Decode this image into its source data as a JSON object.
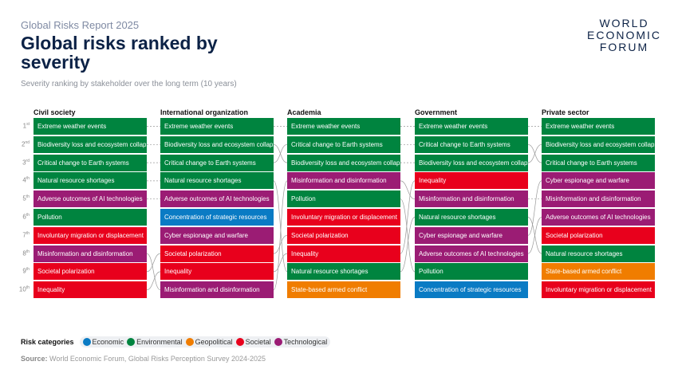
{
  "header": {
    "report": "Global Risks Report 2025",
    "title": "Global risks ranked by severity",
    "subtitle": "Severity ranking by stakeholder over the long term (10 years)",
    "logo": "WORLD ECONOMIC FORUM"
  },
  "categories": {
    "Economic": "#0a7bc4",
    "Environmental": "#00843f",
    "Geopolitical": "#f07d00",
    "Societal": "#e8001c",
    "Technological": "#9b1c74"
  },
  "ranks": [
    [
      "1",
      "st"
    ],
    [
      "2",
      "nd"
    ],
    [
      "3",
      "rd"
    ],
    [
      "4",
      "th"
    ],
    [
      "5",
      "th"
    ],
    [
      "6",
      "th"
    ],
    [
      "7",
      "th"
    ],
    [
      "8",
      "th"
    ],
    [
      "9",
      "th"
    ],
    [
      "10",
      "th"
    ]
  ],
  "columns": [
    {
      "name": "Civil society",
      "risks": [
        [
          "Extreme weather events",
          "Environmental"
        ],
        [
          "Biodiversity loss and ecosystem collapse",
          "Environmental"
        ],
        [
          "Critical change to Earth systems",
          "Environmental"
        ],
        [
          "Natural resource shortages",
          "Environmental"
        ],
        [
          "Adverse outcomes of AI technologies",
          "Technological"
        ],
        [
          "Pollution",
          "Environmental"
        ],
        [
          "Involuntary migration or displacement",
          "Societal"
        ],
        [
          "Misinformation and disinformation",
          "Technological"
        ],
        [
          "Societal polarization",
          "Societal"
        ],
        [
          "Inequality",
          "Societal"
        ]
      ]
    },
    {
      "name": "International organization",
      "risks": [
        [
          "Extreme weather events",
          "Environmental"
        ],
        [
          "Biodiversity loss and ecosystem collapse",
          "Environmental"
        ],
        [
          "Critical change to Earth systems",
          "Environmental"
        ],
        [
          "Natural resource shortages",
          "Environmental"
        ],
        [
          "Adverse outcomes of AI technologies",
          "Technological"
        ],
        [
          "Concentration of strategic resources",
          "Economic"
        ],
        [
          "Cyber espionage and warfare",
          "Technological"
        ],
        [
          "Societal polarization",
          "Societal"
        ],
        [
          "Inequality",
          "Societal"
        ],
        [
          "Misinformation and disinformation",
          "Technological"
        ]
      ]
    },
    {
      "name": "Academia",
      "risks": [
        [
          "Extreme weather events",
          "Environmental"
        ],
        [
          "Critical change to Earth systems",
          "Environmental"
        ],
        [
          "Biodiversity loss and ecosystem collapse",
          "Environmental"
        ],
        [
          "Misinformation and disinformation",
          "Technological"
        ],
        [
          "Pollution",
          "Environmental"
        ],
        [
          "Involuntary migration or displacement",
          "Societal"
        ],
        [
          "Societal polarization",
          "Societal"
        ],
        [
          "Inequality",
          "Societal"
        ],
        [
          "Natural resource shortages",
          "Environmental"
        ],
        [
          "State-based armed conflict",
          "Geopolitical"
        ]
      ]
    },
    {
      "name": "Government",
      "risks": [
        [
          "Extreme weather events",
          "Environmental"
        ],
        [
          "Critical change to Earth systems",
          "Environmental"
        ],
        [
          "Biodiversity loss and ecosystem collapse",
          "Environmental"
        ],
        [
          "Inequality",
          "Societal"
        ],
        [
          "Misinformation and disinformation",
          "Technological"
        ],
        [
          "Natural resource shortages",
          "Environmental"
        ],
        [
          "Cyber espionage and warfare",
          "Technological"
        ],
        [
          "Adverse outcomes of AI technologies",
          "Technological"
        ],
        [
          "Pollution",
          "Environmental"
        ],
        [
          "Concentration of strategic resources",
          "Economic"
        ]
      ]
    },
    {
      "name": "Private sector",
      "risks": [
        [
          "Extreme weather events",
          "Environmental"
        ],
        [
          "Biodiversity loss and ecosystem collapse",
          "Environmental"
        ],
        [
          "Critical change to Earth systems",
          "Environmental"
        ],
        [
          "Cyber espionage and warfare",
          "Technological"
        ],
        [
          "Misinformation and disinformation",
          "Technological"
        ],
        [
          "Adverse outcomes of AI technologies",
          "Technological"
        ],
        [
          "Societal polarization",
          "Societal"
        ],
        [
          "Natural resource shortages",
          "Environmental"
        ],
        [
          "State-based armed conflict",
          "Geopolitical"
        ],
        [
          "Involuntary migration or displacement",
          "Societal"
        ]
      ]
    }
  ],
  "legend": {
    "label": "Risk categories",
    "items": [
      "Economic",
      "Environmental",
      "Geopolitical",
      "Societal",
      "Technological"
    ]
  },
  "source": {
    "label": "Source:",
    "text": "World Economic Forum, Global Risks Perception Survey 2024-2025"
  }
}
